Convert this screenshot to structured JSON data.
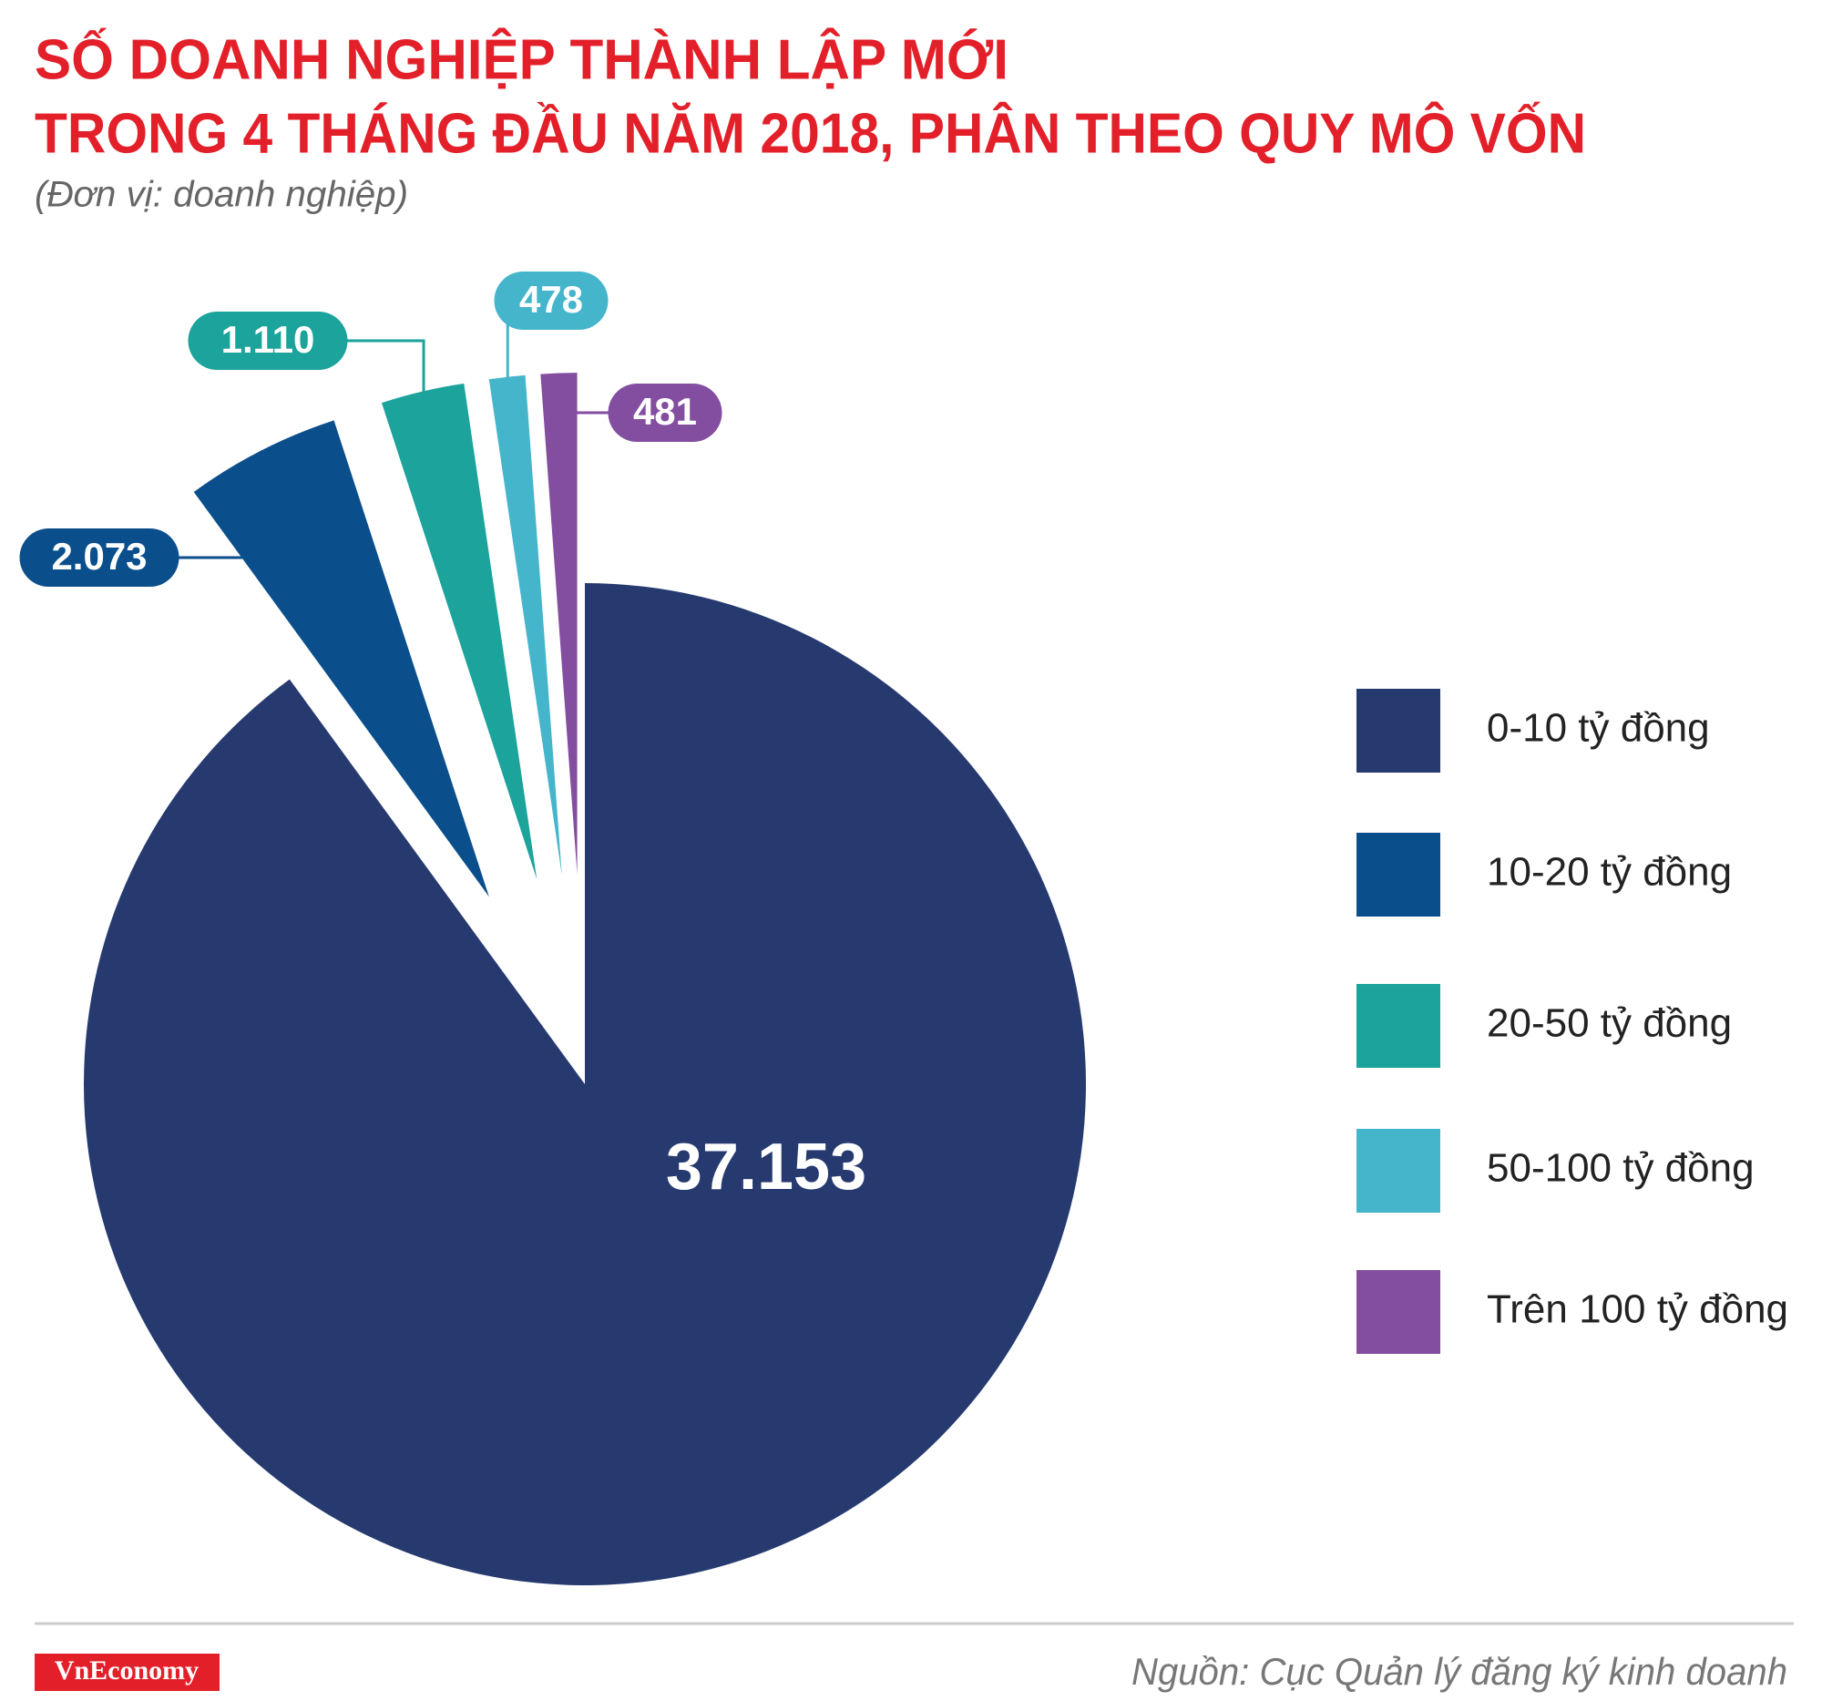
{
  "chart_data": {
    "type": "pie",
    "title": [
      "SỐ DOANH NGHIỆP THÀNH LẬP MỚI",
      "TRONG 4 THÁNG ĐẦU NĂM 2018, PHÂN THEO QUY MÔ VỐN"
    ],
    "subtitle": "(Đơn vị: doanh nghiệp)",
    "categories": [
      "0-10 tỷ đồng",
      "10-20 tỷ đồng",
      "20-50 tỷ đồng",
      "50-100 tỷ đồng",
      "Trên 100 tỷ đồng"
    ],
    "values": [
      37153,
      2073,
      1110,
      478,
      481
    ],
    "value_labels": [
      "37.153",
      "2.073",
      "1.110",
      "478",
      "481"
    ],
    "colors": [
      "#263a70",
      "#0a4f8c",
      "#1ba39c",
      "#45b5cc",
      "#834ea0"
    ],
    "legend": "right",
    "source": "Nguồn: Cục Quản lý đăng ký kinh doanh",
    "logo": "VnEconomy"
  }
}
